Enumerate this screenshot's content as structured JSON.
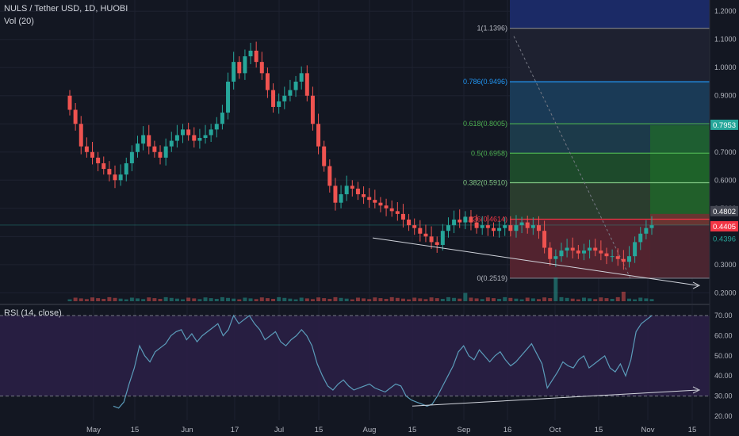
{
  "header": {
    "symbol": "NULS / Tether USD, 1D, HUOBI",
    "volume_label": "Vol (20)",
    "rsi_label": "RSI (14, close)"
  },
  "colors": {
    "background": "#131722",
    "grid": "#1e2230",
    "up": "#26a69a",
    "down": "#ef5350",
    "rsi_line": "#5b9cba",
    "rsi_band": "#2a1f45",
    "text": "#b2b5be",
    "price_tag_red": "#f23645",
    "price_tag_green": "#26a69a"
  },
  "chart_data": [
    {
      "type": "candlestick",
      "title": "NULS / Tether USD, 1D, HUOBI",
      "y_ticks": [
        "0.2000",
        "0.3000",
        "0.4000",
        "0.5000",
        "0.6000",
        "0.7000",
        "0.8000",
        "0.9000",
        "1.0000",
        "1.1000",
        "1.2000"
      ],
      "ylim": [
        0.17,
        1.24
      ],
      "x_ticks": [
        "May",
        "15",
        "Jun",
        "17",
        "Jul",
        "15",
        "Aug",
        "15",
        "Sep",
        "16",
        "Oct",
        "15",
        "Nov",
        "15"
      ],
      "price_tags": [
        {
          "value": "0.7953",
          "color": "green"
        },
        {
          "value": "0.4802",
          "color": "gray"
        },
        {
          "value": "0.4405",
          "color": "red"
        },
        {
          "value": "0.4396",
          "color": "green-text"
        }
      ],
      "fib_levels": [
        {
          "label": "1(1.1396)",
          "value": 1.1396,
          "fill": "#1e2130"
        },
        {
          "label": "0.786(0.9496)",
          "value": 0.9496,
          "fill": "#1a3a56"
        },
        {
          "label": "0.618(0.8005)",
          "value": 0.8005,
          "fill": "#1c3a4a"
        },
        {
          "label": "0.5(0.6958)",
          "value": 0.6958,
          "fill": "#1d4a2b"
        },
        {
          "label": "0.382(0.5910)",
          "value": 0.591,
          "fill": "#2a3d2e"
        },
        {
          "label": "0.236(0.4614)",
          "value": 0.4614,
          "fill": "#4a2530"
        },
        {
          "label": "0(0.2519)",
          "value": 0.2519,
          "fill": null
        }
      ],
      "fib_top_band": {
        "from": 1.1396,
        "to": 1.24,
        "fill": "#1b2a66"
      },
      "long_position": {
        "target": 0.7953,
        "entry": 0.4405,
        "stop": 0.4802
      },
      "closes": [
        0.85,
        0.8,
        0.72,
        0.7,
        0.68,
        0.66,
        0.64,
        0.62,
        0.6,
        0.62,
        0.66,
        0.7,
        0.73,
        0.76,
        0.72,
        0.7,
        0.68,
        0.72,
        0.74,
        0.76,
        0.78,
        0.76,
        0.74,
        0.75,
        0.76,
        0.78,
        0.8,
        0.84,
        0.95,
        1.02,
        0.98,
        1.04,
        1.06,
        1.02,
        0.98,
        0.92,
        0.86,
        0.88,
        0.9,
        0.92,
        0.95,
        0.98,
        0.9,
        0.8,
        0.72,
        0.65,
        0.58,
        0.52,
        0.55,
        0.58,
        0.57,
        0.55,
        0.54,
        0.53,
        0.52,
        0.51,
        0.5,
        0.49,
        0.48,
        0.46,
        0.44,
        0.43,
        0.41,
        0.4,
        0.38,
        0.37,
        0.42,
        0.44,
        0.46,
        0.45,
        0.47,
        0.45,
        0.43,
        0.44,
        0.43,
        0.42,
        0.43,
        0.44,
        0.42,
        0.44,
        0.45,
        0.43,
        0.44,
        0.42,
        0.36,
        0.32,
        0.33,
        0.35,
        0.36,
        0.35,
        0.34,
        0.35,
        0.36,
        0.35,
        0.34,
        0.33,
        0.33,
        0.32,
        0.31,
        0.33,
        0.38,
        0.41,
        0.43,
        0.44
      ],
      "volume_spikes": [
        {
          "index": 86,
          "relative": 1.0
        },
        {
          "index": 70,
          "relative": 0.35
        },
        {
          "index": 98,
          "relative": 0.4
        }
      ]
    },
    {
      "type": "line",
      "title": "RSI (14, close)",
      "y_ticks": [
        "20.00",
        "30.00",
        "40.00",
        "50.00",
        "60.00",
        "70.00"
      ],
      "ylim": [
        18,
        74
      ],
      "bands": [
        30,
        70
      ],
      "values": [
        25,
        24,
        27,
        36,
        44,
        55,
        50,
        47,
        52,
        54,
        56,
        60,
        62,
        63,
        58,
        61,
        57,
        60,
        62,
        64,
        66,
        60,
        63,
        70,
        66,
        68,
        70,
        66,
        63,
        58,
        60,
        62,
        57,
        55,
        58,
        60,
        63,
        60,
        55,
        46,
        40,
        35,
        33,
        36,
        38,
        35,
        33,
        34,
        35,
        36,
        34,
        33,
        32,
        34,
        36,
        35,
        30,
        28,
        27,
        26,
        25,
        26,
        30,
        35,
        40,
        45,
        52,
        55,
        50,
        48,
        53,
        50,
        47,
        50,
        52,
        48,
        45,
        47,
        50,
        53,
        56,
        51,
        46,
        34,
        38,
        42,
        47,
        45,
        44,
        48,
        50,
        44,
        46,
        48,
        50,
        44,
        42,
        46,
        40,
        48,
        62,
        66,
        68,
        70
      ]
    }
  ]
}
